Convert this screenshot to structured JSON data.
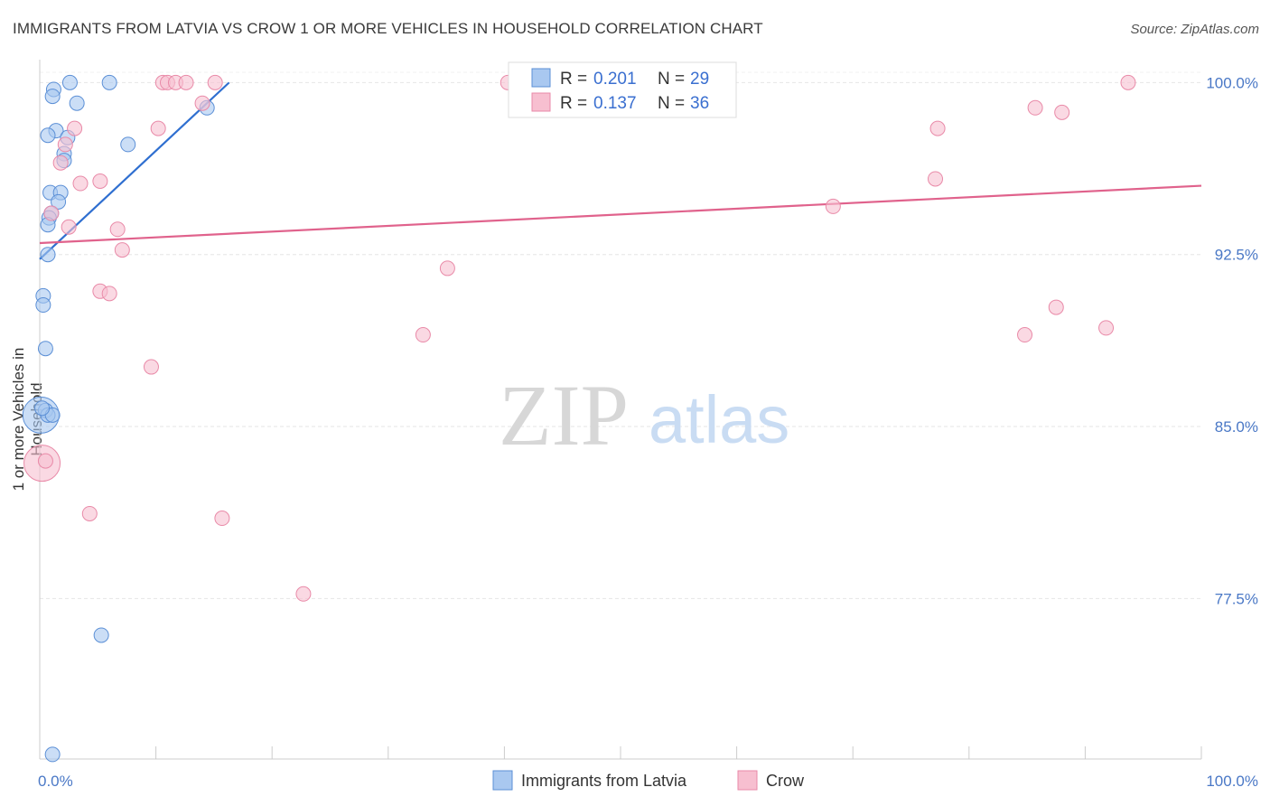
{
  "header": {
    "title": "IMMIGRANTS FROM LATVIA VS CROW 1 OR MORE VEHICLES IN HOUSEHOLD CORRELATION CHART",
    "source": "Source: ZipAtlas.com"
  },
  "watermark": {
    "zip": "ZIP",
    "atlas": "atlas"
  },
  "colors": {
    "blue_fill": "#a9c8f0",
    "blue_stroke": "#5b8fd6",
    "blue_line": "#2f6fd0",
    "pink_fill": "#f7bfd0",
    "pink_stroke": "#e98aa8",
    "pink_line": "#e0628c",
    "axis_text": "#4a78c6",
    "grid": "#e6e6e6"
  },
  "legend": {
    "rows": [
      {
        "r_label": "R = ",
        "r_value": "0.201",
        "n_label": "N = ",
        "n_value": "29"
      },
      {
        "r_label": "R = ",
        "r_value": "0.137",
        "n_label": "N = ",
        "n_value": "36"
      }
    ]
  },
  "chart_data": {
    "type": "scatter",
    "title": "IMMIGRANTS FROM LATVIA VS CROW 1 OR MORE VEHICLES IN HOUSEHOLD CORRELATION CHART",
    "xlabel": "",
    "ylabel": "1 or more Vehicles in Household",
    "xlim": [
      0,
      100
    ],
    "ylim": [
      70.5,
      101
    ],
    "x_tick_labels": [
      "0.0%",
      "100.0%"
    ],
    "y_ticks": [
      77.5,
      85.0,
      92.5,
      100.0
    ],
    "y_tick_labels": [
      "77.5%",
      "85.0%",
      "92.5%",
      "100.0%"
    ],
    "grid": true,
    "series": [
      {
        "name": "Immigrants from Latvia",
        "color": "#a9c8f0",
        "points": [
          {
            "x": 0.1,
            "y": 85.5,
            "big": true
          },
          {
            "x": 2.6,
            "y": 100.0
          },
          {
            "x": 6.0,
            "y": 100.0
          },
          {
            "x": 1.2,
            "y": 99.7
          },
          {
            "x": 1.1,
            "y": 99.4
          },
          {
            "x": 3.2,
            "y": 99.1
          },
          {
            "x": 14.4,
            "y": 98.9
          },
          {
            "x": 1.4,
            "y": 97.9
          },
          {
            "x": 0.7,
            "y": 97.7
          },
          {
            "x": 2.4,
            "y": 97.6
          },
          {
            "x": 7.6,
            "y": 97.3
          },
          {
            "x": 2.1,
            "y": 96.9
          },
          {
            "x": 2.1,
            "y": 96.6
          },
          {
            "x": 0.9,
            "y": 95.2
          },
          {
            "x": 1.8,
            "y": 95.2
          },
          {
            "x": 1.6,
            "y": 94.8
          },
          {
            "x": 1.0,
            "y": 94.3
          },
          {
            "x": 0.8,
            "y": 94.1
          },
          {
            "x": 0.7,
            "y": 93.8
          },
          {
            "x": 0.7,
            "y": 92.5
          },
          {
            "x": 0.3,
            "y": 90.7
          },
          {
            "x": 0.3,
            "y": 90.3
          },
          {
            "x": 0.5,
            "y": 88.4
          },
          {
            "x": 0.5,
            "y": 85.7
          },
          {
            "x": 0.7,
            "y": 85.5
          },
          {
            "x": 1.1,
            "y": 85.5
          },
          {
            "x": 5.3,
            "y": 75.9
          },
          {
            "x": 1.1,
            "y": 70.7
          },
          {
            "x": 0.2,
            "y": 85.8
          }
        ],
        "trend": {
          "x0": 0.0,
          "y0": 92.3,
          "x1": 16.3,
          "y1": 100.0
        }
      },
      {
        "name": "Crow",
        "color": "#f7bfd0",
        "points": [
          {
            "x": 0.2,
            "y": 83.4,
            "big": true
          },
          {
            "x": 10.6,
            "y": 100.0
          },
          {
            "x": 11.0,
            "y": 100.0
          },
          {
            "x": 11.7,
            "y": 100.0
          },
          {
            "x": 12.6,
            "y": 100.0
          },
          {
            "x": 15.1,
            "y": 100.0
          },
          {
            "x": 40.3,
            "y": 100.0
          },
          {
            "x": 93.7,
            "y": 100.0
          },
          {
            "x": 14.0,
            "y": 99.1
          },
          {
            "x": 85.7,
            "y": 98.9
          },
          {
            "x": 88.0,
            "y": 98.7
          },
          {
            "x": 3.0,
            "y": 98.0
          },
          {
            "x": 10.2,
            "y": 98.0
          },
          {
            "x": 77.3,
            "y": 98.0
          },
          {
            "x": 2.2,
            "y": 97.3
          },
          {
            "x": 1.8,
            "y": 96.5
          },
          {
            "x": 5.2,
            "y": 95.7
          },
          {
            "x": 3.5,
            "y": 95.6
          },
          {
            "x": 77.1,
            "y": 95.8
          },
          {
            "x": 68.3,
            "y": 94.6
          },
          {
            "x": 1.0,
            "y": 94.3
          },
          {
            "x": 2.5,
            "y": 93.7
          },
          {
            "x": 6.7,
            "y": 93.6
          },
          {
            "x": 7.1,
            "y": 92.7
          },
          {
            "x": 35.1,
            "y": 91.9
          },
          {
            "x": 5.2,
            "y": 90.9
          },
          {
            "x": 6.0,
            "y": 90.8
          },
          {
            "x": 87.5,
            "y": 90.2
          },
          {
            "x": 33.0,
            "y": 89.0
          },
          {
            "x": 84.8,
            "y": 89.0
          },
          {
            "x": 91.8,
            "y": 89.3
          },
          {
            "x": 9.6,
            "y": 87.6
          },
          {
            "x": 4.3,
            "y": 81.2
          },
          {
            "x": 15.7,
            "y": 81.0
          },
          {
            "x": 22.7,
            "y": 77.7
          },
          {
            "x": 0.5,
            "y": 83.5
          }
        ],
        "trend": {
          "x0": 0.0,
          "y0": 93.0,
          "x1": 100.0,
          "y1": 95.5
        }
      }
    ]
  }
}
